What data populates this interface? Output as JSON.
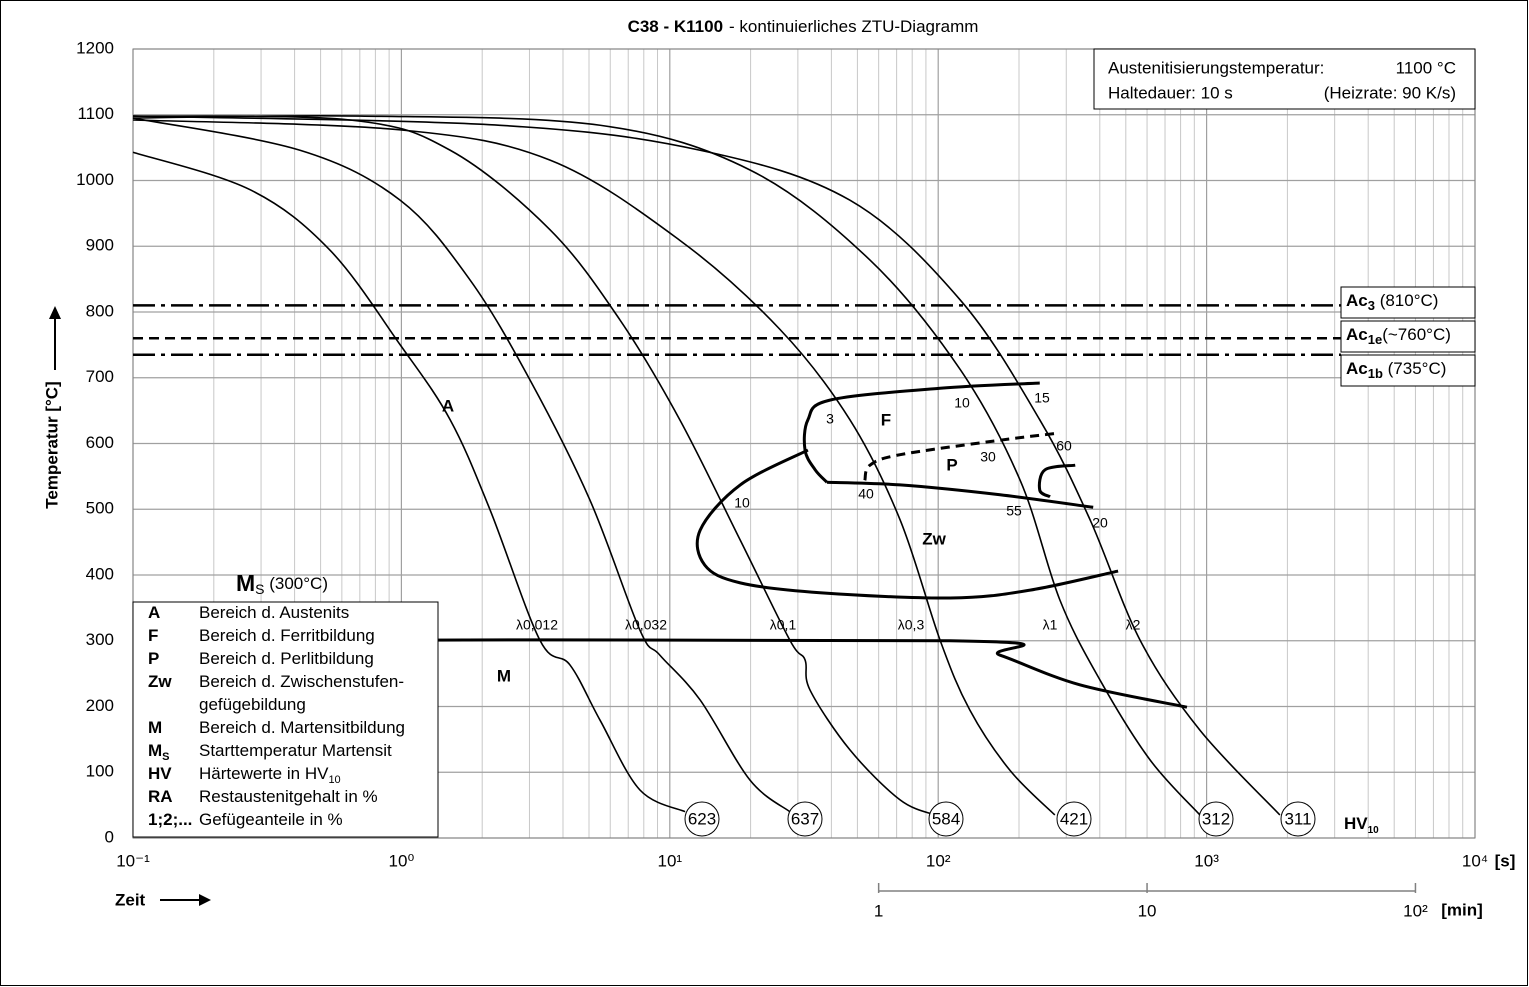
{
  "chart_data": {
    "type": "line",
    "title": [
      "C38 - K1100",
      "- kontinuierliches ZTU-Diagramm"
    ],
    "info": [
      "Austenitisierungstemperatur:",
      "1100 °C",
      "Haltedauer: 10 s",
      "(Heizrate: 90 K/s)"
    ],
    "xlabel": "Zeit",
    "ylabel": "Temperatur [°C]",
    "x_unit": "[s]",
    "x2_unit": "[min]",
    "xscale": "log",
    "xlim": [
      0.1,
      10000
    ],
    "xticks": [
      {
        "value": 0.1,
        "label": "10⁻¹"
      },
      {
        "value": 1,
        "label": "10⁰"
      },
      {
        "value": 10,
        "label": "10¹"
      },
      {
        "value": 100,
        "label": "10²"
      },
      {
        "value": 1000,
        "label": "10³"
      },
      {
        "value": 10000,
        "label": "10⁴"
      }
    ],
    "x2ticks": [
      {
        "value": 60,
        "label": "1"
      },
      {
        "value": 600,
        "label": "10"
      },
      {
        "value": 6000,
        "label": "10²"
      }
    ],
    "ylim": [
      0,
      1200
    ],
    "yticks": [
      0,
      100,
      200,
      300,
      400,
      500,
      600,
      700,
      800,
      900,
      1000,
      1100,
      1200
    ],
    "grid": true,
    "minor_grid": true,
    "series": [
      {
        "name": "λ0,012",
        "color": "#000000",
        "hardness": 623,
        "x": [
          0.1,
          0.273,
          0.542,
          0.99,
          1.52,
          2.14,
          3.28,
          4.25,
          5.5,
          7.74,
          11.4
        ],
        "values": [
          1043,
          986,
          894,
          750,
          636,
          499,
          301,
          263,
          179,
          73,
          40
        ]
      },
      {
        "name": "λ0,032",
        "color": "#000000",
        "hardness": 637,
        "x": [
          0.1,
          0.419,
          0.99,
          1.8,
          3.01,
          5.04,
          7.74,
          9.19,
          12.97,
          19.9,
          28
        ],
        "values": [
          1095,
          1046,
          970,
          849,
          697,
          514,
          316,
          278,
          210,
          88,
          40
        ]
      },
      {
        "name": "λ0,1",
        "color": "#000000",
        "hardness": 584,
        "x": [
          0.1,
          0.643,
          1.52,
          3.58,
          6.52,
          10.9,
          18.3,
          28,
          31.9,
          33.3,
          46.9,
          72.1,
          97.3
        ],
        "values": [
          1098,
          1092,
          1046,
          925,
          788,
          636,
          453,
          301,
          271,
          225,
          134,
          58,
          35
        ]
      },
      {
        "name": "λ0,3",
        "color": "#000000",
        "hardness": 421,
        "x": [
          0.1,
          0.99,
          3.58,
          10.9,
          25.8,
          46.9,
          72.1,
          101.6,
          131,
          185,
          272
        ],
        "values": [
          1092,
          1077,
          1031,
          909,
          773,
          636,
          484,
          301,
          195,
          103,
          35
        ]
      },
      {
        "name": "λ1",
        "color": "#000000",
        "hardness": 312,
        "x": [
          0.1,
          0.702,
          5.5,
          19.9,
          55.7,
          121,
          202,
          284,
          401,
          615,
          944
        ],
        "values": [
          1095,
          1098,
          1084,
          1016,
          879,
          712,
          544,
          362,
          240,
          119,
          35
        ]
      },
      {
        "name": "λ2",
        "color": "#000000",
        "hardness": 311,
        "x": [
          0.1,
          2.33,
          12.97,
          46.9,
          121,
          239,
          368,
          565,
          944,
          1875
        ],
        "values": [
          1098,
          1084,
          1046,
          970,
          818,
          636,
          484,
          301,
          164,
          35
        ]
      }
    ],
    "boundaries": [
      {
        "style": "solid",
        "x": [
          239,
          101.6,
          39.5,
          32.7,
          31.9,
          34.8,
          38.5
        ],
        "values": [
          692,
          684,
          666,
          636,
          590,
          560,
          541
        ]
      },
      {
        "style": "solid",
        "x": [
          38.5,
          72.1,
          170,
          378
        ],
        "values": [
          541,
          537,
          522,
          503
        ]
      },
      {
        "style": "solid",
        "x": [
          32.7,
          18.3,
          12.97,
          13.5,
          18.3,
          36.3,
          111,
          220,
          468
        ],
        "values": [
          590,
          537,
          468,
          415,
          388,
          373,
          365,
          377,
          406
        ]
      },
      {
        "style": "dashed",
        "x": [
          53.3,
          55.7,
          72.1,
          170,
          284
        ],
        "values": [
          544,
          567,
          583,
          605,
          616
        ]
      },
      {
        "style": "solid",
        "x": [
          324,
          250,
          239,
          261
        ],
        "values": [
          567,
          560,
          529,
          519
        ]
      }
    ],
    "ms": {
      "label": [
        "M",
        "S",
        " (300°C)"
      ],
      "x": [
        0.1,
        111,
        170,
        337,
        845
      ],
      "values": [
        300,
        300,
        278,
        233,
        199
      ]
    },
    "hlines": [
      {
        "label": [
          "Ac",
          "3",
          " (810°C)"
        ],
        "value": 810,
        "style": "dashdot"
      },
      {
        "label": [
          "Ac",
          "1e",
          "(~760°C)"
        ],
        "value": 760,
        "style": "dashed"
      },
      {
        "label": [
          "Ac",
          "1b",
          " (735°C)"
        ],
        "value": 735,
        "style": "dashdot"
      }
    ],
    "regions": [
      "A",
      "F",
      "P",
      "Zw",
      "M"
    ],
    "phase_labels": [
      "3",
      "10",
      "15",
      "10",
      "30",
      "60",
      "40",
      "55",
      "20"
    ],
    "hardness_label": [
      "HV",
      "10"
    ],
    "legend": [
      {
        "key": [
          "A"
        ],
        "lines": [
          [
            "Bereich d. Austenits"
          ]
        ]
      },
      {
        "key": [
          "F"
        ],
        "lines": [
          [
            "Bereich d. Ferritbildung"
          ]
        ]
      },
      {
        "key": [
          "P"
        ],
        "lines": [
          [
            "Bereich d. Perlitbildung"
          ]
        ]
      },
      {
        "key": [
          "Zw"
        ],
        "lines": [
          [
            "Bereich d. Zwischenstufen-"
          ],
          [
            "gefügebildung"
          ]
        ]
      },
      {
        "key": [
          "M"
        ],
        "lines": [
          [
            "Bereich d. Martensitbildung"
          ]
        ]
      },
      {
        "key": [
          "M",
          "S"
        ],
        "lines": [
          [
            "Starttemperatur Martensit"
          ]
        ]
      },
      {
        "key": [
          "HV"
        ],
        "lines": [
          [
            "Härtewerte in HV",
            "10"
          ]
        ]
      },
      {
        "key": [
          "RA"
        ],
        "lines": [
          [
            "Restaustenitgehalt in %"
          ]
        ]
      },
      {
        "key": [
          "1;2;..."
        ],
        "lines": [
          [
            "Gefügeanteile in %"
          ]
        ]
      }
    ]
  }
}
